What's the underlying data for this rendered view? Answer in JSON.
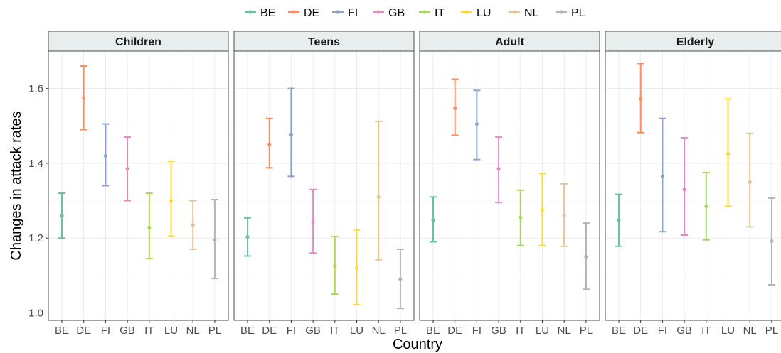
{
  "chart_data": {
    "type": "errorbar",
    "xlabel": "Country",
    "ylabel": "Changes in attack rates",
    "ylim": [
      0.98,
      1.7
    ],
    "yticks": [
      1.0,
      1.2,
      1.4,
      1.6
    ],
    "ytick_labels": [
      "1.0",
      "1.2",
      "1.4",
      "1.6"
    ],
    "grid": true,
    "legend_position": "top",
    "categories": [
      "BE",
      "DE",
      "FI",
      "GB",
      "IT",
      "LU",
      "NL",
      "PL"
    ],
    "colors": {
      "BE": "#66c2a5",
      "DE": "#fc8d62",
      "FI": "#8da0cb",
      "GB": "#e78ac3",
      "IT": "#a6d854",
      "LU": "#ffd92f",
      "NL": "#e5c494",
      "PL": "#b3b3b3"
    },
    "panels": [
      {
        "name": "Children",
        "points": [
          {
            "x": "BE",
            "y": 1.26,
            "lower": 1.2,
            "upper": 1.32
          },
          {
            "x": "DE",
            "y": 1.575,
            "lower": 1.49,
            "upper": 1.66
          },
          {
            "x": "FI",
            "y": 1.42,
            "lower": 1.34,
            "upper": 1.505
          },
          {
            "x": "GB",
            "y": 1.385,
            "lower": 1.3,
            "upper": 1.47
          },
          {
            "x": "IT",
            "y": 1.228,
            "lower": 1.145,
            "upper": 1.32
          },
          {
            "x": "LU",
            "y": 1.3,
            "lower": 1.205,
            "upper": 1.405
          },
          {
            "x": "NL",
            "y": 1.235,
            "lower": 1.17,
            "upper": 1.3
          },
          {
            "x": "PL",
            "y": 1.195,
            "lower": 1.092,
            "upper": 1.303
          }
        ]
      },
      {
        "name": "Teens",
        "points": [
          {
            "x": "BE",
            "y": 1.203,
            "lower": 1.152,
            "upper": 1.254
          },
          {
            "x": "DE",
            "y": 1.45,
            "lower": 1.388,
            "upper": 1.52
          },
          {
            "x": "FI",
            "y": 1.477,
            "lower": 1.365,
            "upper": 1.6
          },
          {
            "x": "GB",
            "y": 1.243,
            "lower": 1.16,
            "upper": 1.33
          },
          {
            "x": "IT",
            "y": 1.125,
            "lower": 1.05,
            "upper": 1.204
          },
          {
            "x": "LU",
            "y": 1.12,
            "lower": 1.022,
            "upper": 1.222
          },
          {
            "x": "NL",
            "y": 1.31,
            "lower": 1.142,
            "upper": 1.512
          },
          {
            "x": "PL",
            "y": 1.09,
            "lower": 1.012,
            "upper": 1.17
          }
        ]
      },
      {
        "name": "Adult",
        "points": [
          {
            "x": "BE",
            "y": 1.248,
            "lower": 1.19,
            "upper": 1.31
          },
          {
            "x": "DE",
            "y": 1.547,
            "lower": 1.475,
            "upper": 1.625
          },
          {
            "x": "FI",
            "y": 1.505,
            "lower": 1.41,
            "upper": 1.595
          },
          {
            "x": "GB",
            "y": 1.385,
            "lower": 1.295,
            "upper": 1.47
          },
          {
            "x": "IT",
            "y": 1.255,
            "lower": 1.18,
            "upper": 1.328
          },
          {
            "x": "LU",
            "y": 1.275,
            "lower": 1.18,
            "upper": 1.373
          },
          {
            "x": "NL",
            "y": 1.26,
            "lower": 1.178,
            "upper": 1.345
          },
          {
            "x": "PL",
            "y": 1.15,
            "lower": 1.063,
            "upper": 1.24
          }
        ]
      },
      {
        "name": "Elderly",
        "points": [
          {
            "x": "BE",
            "y": 1.248,
            "lower": 1.178,
            "upper": 1.317
          },
          {
            "x": "DE",
            "y": 1.572,
            "lower": 1.482,
            "upper": 1.667
          },
          {
            "x": "FI",
            "y": 1.365,
            "lower": 1.217,
            "upper": 1.52
          },
          {
            "x": "GB",
            "y": 1.33,
            "lower": 1.208,
            "upper": 1.468
          },
          {
            "x": "IT",
            "y": 1.285,
            "lower": 1.195,
            "upper": 1.375
          },
          {
            "x": "LU",
            "y": 1.425,
            "lower": 1.285,
            "upper": 1.572
          },
          {
            "x": "NL",
            "y": 1.35,
            "lower": 1.23,
            "upper": 1.48
          },
          {
            "x": "PL",
            "y": 1.192,
            "lower": 1.075,
            "upper": 1.307
          }
        ]
      }
    ]
  }
}
